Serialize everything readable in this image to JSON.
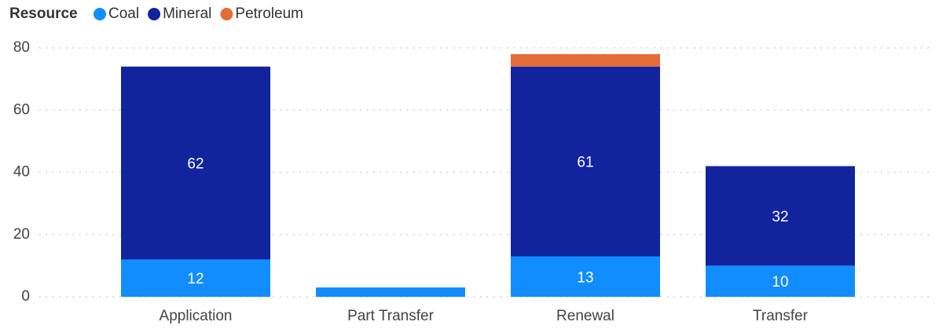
{
  "chart_data": {
    "type": "stacked_bar",
    "legend_title": "Resource",
    "categories": [
      "Application",
      "Part Transfer",
      "Renewal",
      "Transfer"
    ],
    "series": [
      {
        "name": "Coal",
        "color": "#118DFF",
        "values": [
          12,
          3,
          13,
          10
        ]
      },
      {
        "name": "Mineral",
        "color": "#12239E",
        "values": [
          62,
          null,
          61,
          32
        ]
      },
      {
        "name": "Petroleum",
        "color": "#E66C37",
        "values": [
          null,
          null,
          4,
          null
        ]
      }
    ],
    "ylim": [
      0,
      80
    ],
    "yticks": [
      0,
      20,
      40,
      60,
      80
    ],
    "grid": true,
    "legend": "top-left"
  }
}
